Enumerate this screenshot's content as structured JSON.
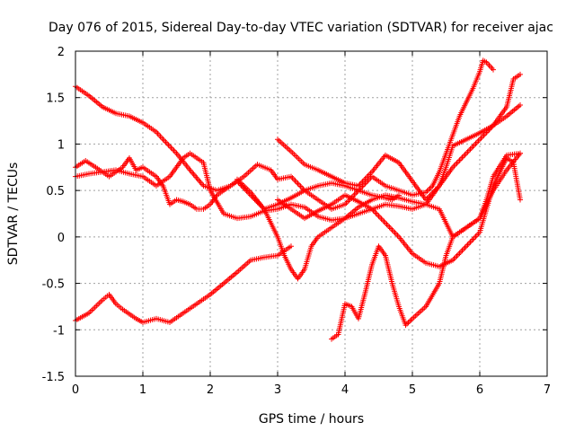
{
  "chart_data": {
    "type": "scatter",
    "title": "Day 076 of 2015, Sidereal Day-to-day VTEC variation (SDTVAR) for receiver ajac",
    "xlabel": "GPS time / hours",
    "ylabel": "SDTVAR / TECUs",
    "xlim": [
      0,
      7
    ],
    "ylim": [
      -1.5,
      2
    ],
    "xticks": [
      "0",
      "1",
      "2",
      "3",
      "4",
      "5",
      "6",
      "7"
    ],
    "yticks": [
      "-1.5",
      "-1",
      "-0.5",
      "0",
      "0.5",
      "1",
      "1.5",
      "2"
    ],
    "grid": true,
    "marker": "+",
    "color": "#ff0000",
    "series": [
      {
        "x": [
          0,
          0.2,
          0.4,
          0.6,
          0.8,
          1.0,
          1.2,
          1.3,
          1.5,
          1.7,
          1.9,
          2.1,
          2.3,
          2.5,
          2.7,
          2.9,
          3.0,
          3.2,
          3.4,
          3.6,
          3.8,
          4.0,
          4.2,
          4.4,
          4.6,
          4.8,
          5.0,
          5.2,
          5.3,
          5.4,
          5.5,
          5.6,
          5.7,
          5.8,
          5.9,
          6.0,
          6.05,
          6.1,
          6.2
        ],
        "y": [
          1.62,
          1.52,
          1.4,
          1.33,
          1.3,
          1.23,
          1.13,
          1.05,
          0.9,
          0.72,
          0.55,
          0.5,
          0.55,
          0.65,
          0.78,
          0.72,
          0.62,
          0.65,
          0.5,
          0.4,
          0.3,
          0.35,
          0.5,
          0.65,
          0.55,
          0.5,
          0.45,
          0.48,
          0.55,
          0.7,
          0.9,
          1.1,
          1.3,
          1.45,
          1.6,
          1.78,
          1.9,
          1.88,
          1.8
        ]
      },
      {
        "x": [
          0,
          0.15,
          0.3,
          0.5,
          0.7,
          0.8,
          0.9,
          1.0,
          1.1,
          1.2,
          1.3,
          1.4,
          1.5,
          1.6,
          1.7,
          1.8,
          1.9,
          2.0,
          2.1,
          2.2,
          2.3,
          2.4,
          2.6,
          2.8,
          3.0,
          3.2,
          3.4,
          3.6,
          3.8,
          4.0,
          4.2,
          4.4,
          4.6,
          4.7,
          4.8
        ],
        "y": [
          0.75,
          0.82,
          0.75,
          0.65,
          0.75,
          0.85,
          0.72,
          0.75,
          0.7,
          0.65,
          0.55,
          0.35,
          0.4,
          0.38,
          0.35,
          0.3,
          0.3,
          0.35,
          0.45,
          0.5,
          0.55,
          0.6,
          0.45,
          0.3,
          0.35,
          0.42,
          0.5,
          0.55,
          0.58,
          0.55,
          0.5,
          0.45,
          0.42,
          0.4,
          0.45
        ]
      },
      {
        "x": [
          0,
          0.2,
          0.4,
          0.6,
          0.8,
          1.0,
          1.1,
          1.2,
          1.3,
          1.4,
          1.5,
          1.6,
          1.7,
          1.8,
          1.9,
          2.0,
          2.2,
          2.4,
          2.6,
          2.8,
          3.0,
          3.2,
          3.4,
          3.6,
          3.8,
          4.0,
          4.2,
          4.4,
          4.6,
          4.8,
          5.0,
          5.2,
          5.4,
          5.6,
          5.8,
          6.0,
          6.2,
          6.4,
          6.6
        ],
        "y": [
          0.65,
          0.68,
          0.7,
          0.72,
          0.68,
          0.65,
          0.6,
          0.55,
          0.6,
          0.65,
          0.75,
          0.85,
          0.9,
          0.85,
          0.8,
          0.5,
          0.25,
          0.2,
          0.22,
          0.28,
          0.3,
          0.35,
          0.32,
          0.22,
          0.18,
          0.2,
          0.25,
          0.3,
          0.35,
          0.33,
          0.3,
          0.35,
          0.55,
          0.75,
          0.9,
          1.05,
          1.2,
          1.3,
          1.42
        ]
      },
      {
        "x": [
          2.4,
          2.6,
          2.8,
          3.0,
          3.1,
          3.2,
          3.3,
          3.4,
          3.5,
          3.6,
          3.8,
          4.0,
          4.2,
          4.4,
          4.6,
          4.8,
          5.0,
          5.2,
          5.4,
          5.6,
          5.8,
          6.0,
          6.2,
          6.4,
          6.6
        ],
        "y": [
          0.62,
          0.48,
          0.3,
          0.0,
          -0.2,
          -0.35,
          -0.45,
          -0.35,
          -0.1,
          0.0,
          0.1,
          0.2,
          0.32,
          0.4,
          0.45,
          0.42,
          0.38,
          0.35,
          0.3,
          0.0,
          0.1,
          0.2,
          0.5,
          0.72,
          0.9
        ]
      },
      {
        "x": [
          3.0,
          3.2,
          3.4,
          3.6,
          3.8,
          4.0,
          4.2,
          4.4,
          4.6,
          4.8,
          5.0,
          5.2,
          5.4,
          5.5,
          5.6,
          5.8,
          6.0,
          6.2,
          6.4,
          6.5,
          6.6
        ],
        "y": [
          1.05,
          0.92,
          0.78,
          0.72,
          0.65,
          0.58,
          0.55,
          0.7,
          0.88,
          0.8,
          0.6,
          0.4,
          0.55,
          0.75,
          0.98,
          1.05,
          1.12,
          1.2,
          1.4,
          1.7,
          1.75
        ]
      },
      {
        "x": [
          3.0,
          3.2,
          3.4,
          3.6,
          3.8,
          4.0,
          4.2,
          4.4,
          4.6,
          4.8,
          5.0,
          5.2,
          5.4,
          5.6,
          5.8,
          6.0,
          6.2,
          6.4,
          6.5,
          6.6
        ],
        "y": [
          0.4,
          0.3,
          0.2,
          0.28,
          0.35,
          0.45,
          0.38,
          0.3,
          0.15,
          0.0,
          -0.18,
          -0.28,
          -0.32,
          -0.25,
          -0.1,
          0.05,
          0.55,
          0.85,
          0.8,
          0.4
        ]
      },
      {
        "x": [
          0,
          0.2,
          0.4,
          0.5,
          0.6,
          0.7,
          0.9,
          1.0,
          1.2,
          1.4,
          1.6,
          1.8,
          2.0,
          2.2,
          2.4,
          2.6,
          2.8,
          3.0,
          3.2
        ],
        "y": [
          -0.9,
          -0.82,
          -0.68,
          -0.62,
          -0.72,
          -0.78,
          -0.88,
          -0.92,
          -0.88,
          -0.92,
          -0.82,
          -0.72,
          -0.62,
          -0.5,
          -0.38,
          -0.25,
          -0.22,
          -0.2,
          -0.1
        ]
      },
      {
        "x": [
          3.8,
          3.9,
          4.0,
          4.1,
          4.2,
          4.3,
          4.4,
          4.5,
          4.6,
          4.7,
          4.8,
          4.9,
          5.0,
          5.2,
          5.4,
          5.5,
          5.6,
          5.8,
          6.0,
          6.1,
          6.2,
          6.4,
          6.6
        ],
        "y": [
          -1.1,
          -1.05,
          -0.72,
          -0.75,
          -0.88,
          -0.6,
          -0.3,
          -0.1,
          -0.2,
          -0.5,
          -0.75,
          -0.95,
          -0.88,
          -0.75,
          -0.5,
          -0.2,
          0.0,
          0.1,
          0.2,
          0.4,
          0.65,
          0.88,
          0.9
        ]
      }
    ]
  }
}
